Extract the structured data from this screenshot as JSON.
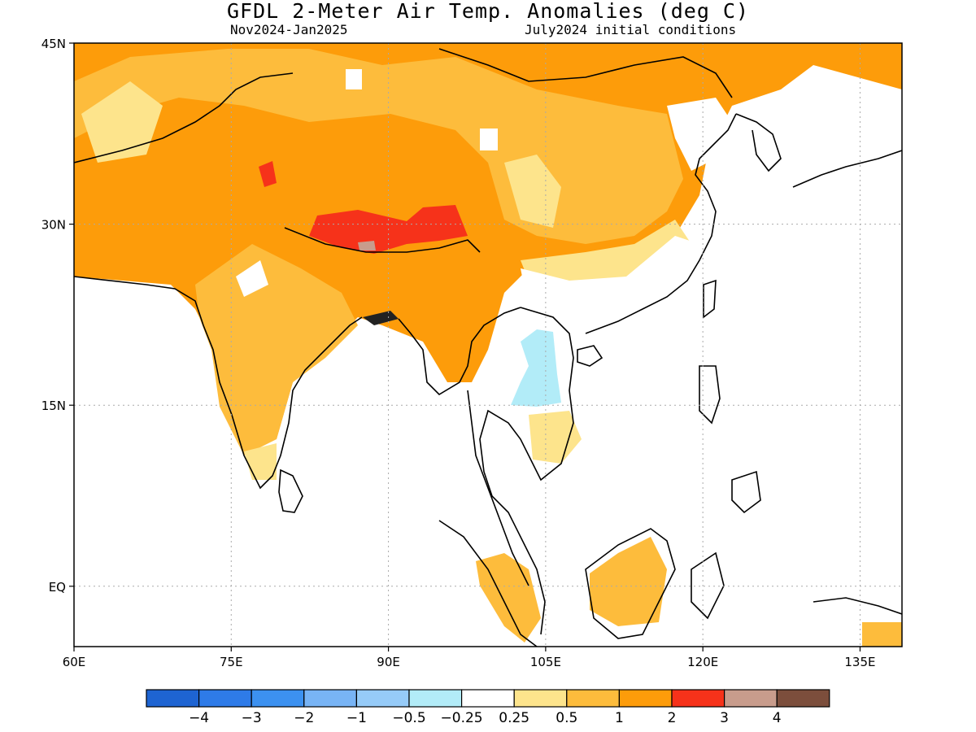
{
  "header": {
    "title": "GFDL 2-Meter Air Temp. Anomalies (deg C)",
    "period": "Nov2024-Jan2025",
    "init": "July2024 initial conditions"
  },
  "axes": {
    "lat_ticks": [
      {
        "value": 45,
        "label": "45N"
      },
      {
        "value": 30,
        "label": "30N"
      },
      {
        "value": 15,
        "label": "15N"
      },
      {
        "value": 0,
        "label": "EQ"
      }
    ],
    "lon_ticks": [
      {
        "value": 60,
        "label": "60E"
      },
      {
        "value": 75,
        "label": "75E"
      },
      {
        "value": 90,
        "label": "90E"
      },
      {
        "value": 105,
        "label": "105E"
      },
      {
        "value": 120,
        "label": "120E"
      },
      {
        "value": 135,
        "label": "135E"
      }
    ],
    "lon_range": [
      60,
      139
    ],
    "lat_range": [
      -5,
      45
    ],
    "grid": true
  },
  "colorbar": {
    "colors": [
      "#1e64d2",
      "#2e7be8",
      "#3c91f0",
      "#78b4f5",
      "#96cbf8",
      "#b2ecf8",
      "#ffffff",
      "#fde48c",
      "#fdbc3c",
      "#fd9c0a",
      "#f6321a",
      "#c89c8c",
      "#7c4e3c"
    ],
    "labels": [
      "-4",
      "-3",
      "-2",
      "-1",
      "-0.5",
      "-0.25",
      "0.25",
      "0.5",
      "1",
      "2",
      "3",
      "4"
    ]
  },
  "anomaly_colors": {
    "0.25": "#fde48c",
    "0.5": "#fdbc3c",
    "1": "#fd9c0a",
    "2": "#f6321a",
    "3": "#c89c8c",
    "-0.25": "#b2ecf8"
  }
}
